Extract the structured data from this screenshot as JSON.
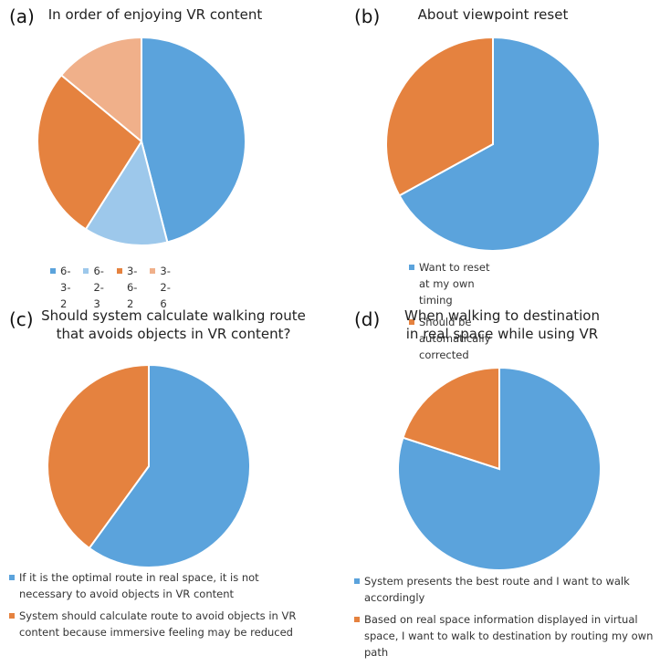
{
  "chart_data": [
    {
      "type": "pie",
      "label": "(a)",
      "title": "In order of enjoying VR content",
      "categories": [
        "6-3-2",
        "6-2-3",
        "3-6-2",
        "3-2-6"
      ],
      "values": [
        46,
        13,
        27,
        14
      ],
      "colors": [
        "#5BA3DC",
        "#9DC8EB",
        "#E5823F",
        "#F0B08A"
      ],
      "legend_position": "bottom"
    },
    {
      "type": "pie",
      "label": "(b)",
      "title": "About viewpoint reset",
      "categories": [
        "Want to reset at my own timing",
        "Should be automatically corrected"
      ],
      "values": [
        67,
        33
      ],
      "colors": [
        "#5BA3DC",
        "#E5823F"
      ],
      "legend_position": "bottom"
    },
    {
      "type": "pie",
      "label": "(c)",
      "title": "Should system calculate walking route\nthat avoids objects in VR content?",
      "categories": [
        "If it is the optimal route in real space, it is not necessary to avoid objects in VR content",
        "System should calculate route to avoid objects in VR content because immersive feeling may be reduced"
      ],
      "values": [
        60,
        40
      ],
      "colors": [
        "#5BA3DC",
        "#E5823F"
      ],
      "legend_position": "bottom"
    },
    {
      "type": "pie",
      "label": "(d)",
      "title": "When walking to destination\nin real space while using VR",
      "categories": [
        "System presents the best route and I want to walk accordingly",
        "Based on real space information displayed in virtual space, I want to walk to destination by routing my own path"
      ],
      "values": [
        80,
        20
      ],
      "colors": [
        "#5BA3DC",
        "#E5823F"
      ],
      "legend_position": "bottom"
    }
  ]
}
